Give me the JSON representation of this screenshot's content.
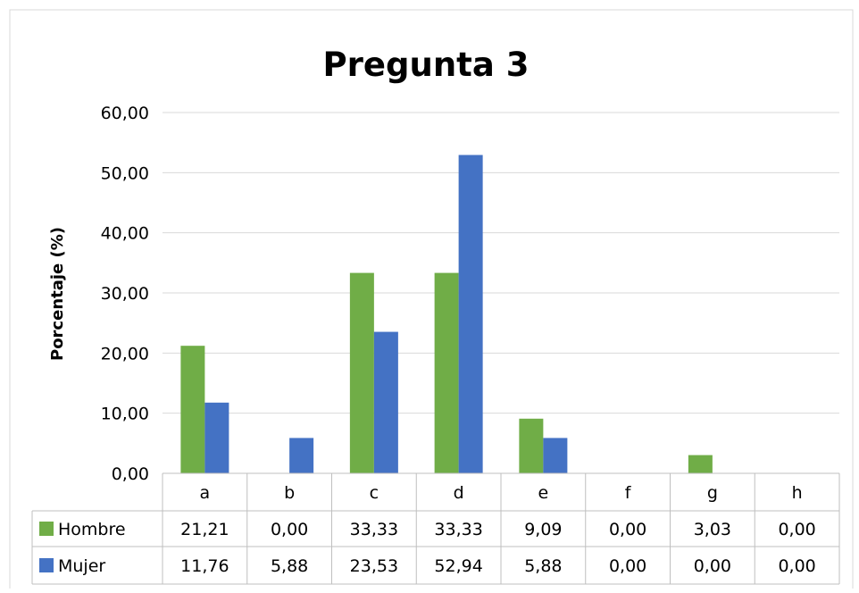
{
  "chart_data": {
    "type": "bar",
    "title": "Pregunta 3",
    "xlabel": "",
    "ylabel": "Porcentaje (%)",
    "ylim": [
      0,
      60
    ],
    "yticks": [
      "0,00",
      "10,00",
      "20,00",
      "30,00",
      "40,00",
      "50,00",
      "60,00"
    ],
    "categories": [
      "a",
      "b",
      "c",
      "d",
      "e",
      "f",
      "g",
      "h"
    ],
    "grid": true,
    "legend": "data-table",
    "series": [
      {
        "name": "Hombre",
        "color": "#70AD47",
        "values": [
          21.21,
          0.0,
          33.33,
          33.33,
          9.09,
          0.0,
          3.03,
          0.0
        ],
        "labels": [
          "21,21",
          "0,00",
          "33,33",
          "33,33",
          "9,09",
          "0,00",
          "3,03",
          "0,00"
        ]
      },
      {
        "name": "Mujer",
        "color": "#4472C4",
        "values": [
          11.76,
          5.88,
          23.53,
          52.94,
          5.88,
          0.0,
          0.0,
          0.0
        ],
        "labels": [
          "11,76",
          "5,88",
          "23,53",
          "52,94",
          "5,88",
          "0,00",
          "0,00",
          "0,00"
        ]
      }
    ]
  }
}
